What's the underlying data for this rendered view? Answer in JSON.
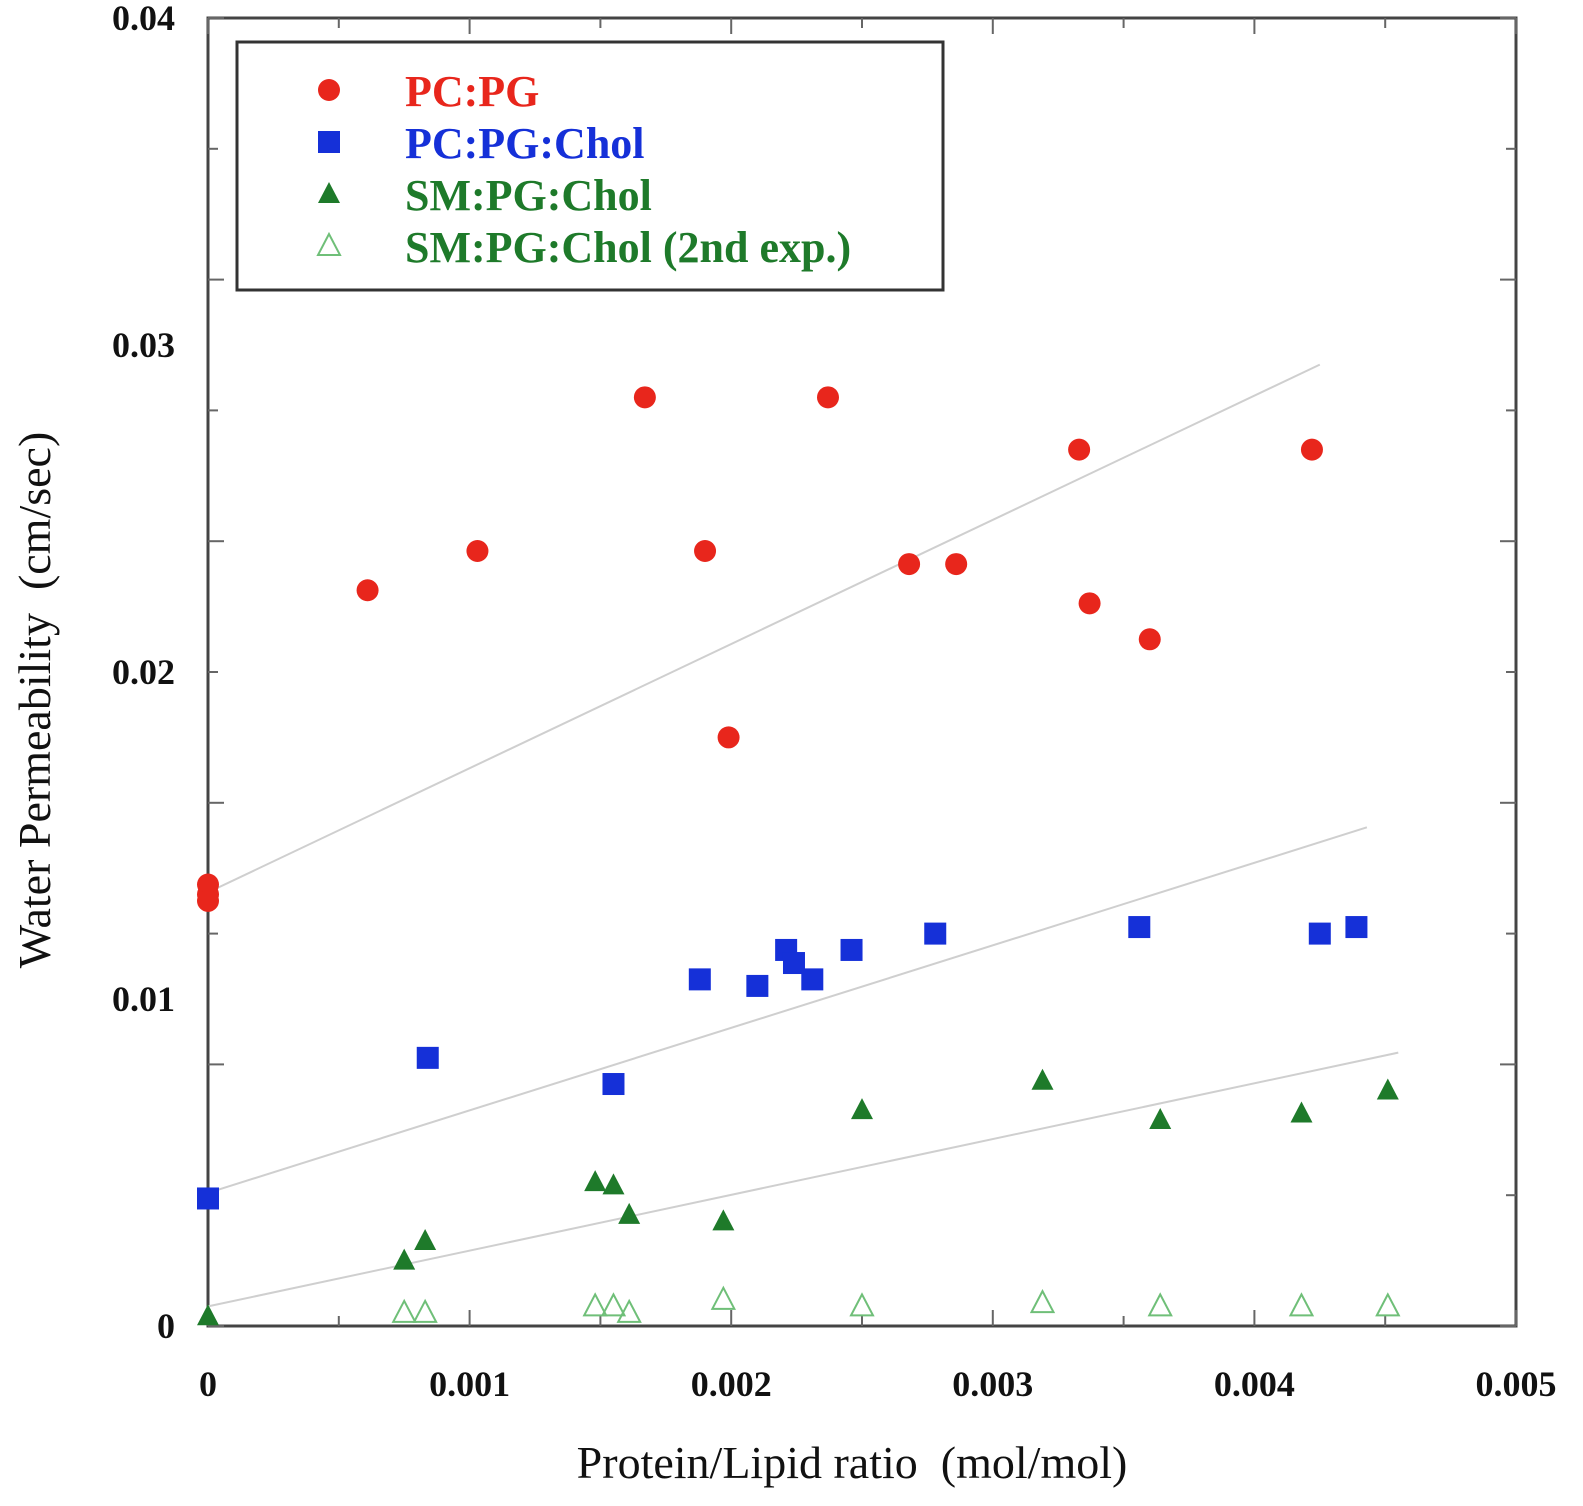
{
  "chart_data": {
    "type": "scatter",
    "title": "",
    "xlabel": "Protein/Lipid ratio  (mol/mol)",
    "ylabel": "Water Permeability  (cm/sec)",
    "xlim": [
      0,
      0.005
    ],
    "ylim": [
      0,
      0.04
    ],
    "xticks": [
      "0",
      "0.001",
      "0.002",
      "0.003",
      "0.004",
      "0.005"
    ],
    "yticks": [
      "0",
      "0.01",
      "0.02",
      "0.03",
      "0.04"
    ],
    "grid": false,
    "legend_position": "top-left",
    "series": [
      {
        "name": "PC:PG",
        "color": "#e8261c",
        "marker": "circle-filled",
        "x": [
          0,
          0,
          0,
          0.00061,
          0.00103,
          0.00167,
          0.0019,
          0.00199,
          0.00237,
          0.00268,
          0.00286,
          0.00333,
          0.00337,
          0.0036,
          0.00422
        ],
        "y": [
          0.0135,
          0.0132,
          0.013,
          0.0225,
          0.0237,
          0.0284,
          0.0237,
          0.018,
          0.0284,
          0.0233,
          0.0233,
          0.0268,
          0.0221,
          0.021,
          0.0268
        ],
        "fit": {
          "x": [
            0,
            0.00425
          ],
          "y": [
            0.01326,
            0.0294
          ]
        }
      },
      {
        "name": "PC:PG:Chol",
        "color": "#1530d8",
        "marker": "square-filled",
        "x": [
          0,
          0.00084,
          0.00155,
          0.00188,
          0.0021,
          0.00221,
          0.00224,
          0.00231,
          0.00246,
          0.00278,
          0.00356,
          0.00425,
          0.00439
        ],
        "y": [
          0.0039,
          0.0082,
          0.0074,
          0.0106,
          0.0104,
          0.0115,
          0.0111,
          0.0106,
          0.0115,
          0.012,
          0.0122,
          0.012,
          0.0122
        ],
        "fit": {
          "x": [
            0,
            0.00443
          ],
          "y": [
            0.00407,
            0.01525
          ]
        }
      },
      {
        "name": "SM:PG:Chol",
        "color": "#1e7a2a",
        "marker": "triangle-filled",
        "x": [
          0,
          0.00075,
          0.00083,
          0.00148,
          0.00155,
          0.00161,
          0.00197,
          0.0025,
          0.00319,
          0.00364,
          0.00418,
          0.00451
        ],
        "y": [
          0.0003,
          0.002,
          0.0026,
          0.0044,
          0.0043,
          0.0034,
          0.0032,
          0.0066,
          0.0075,
          0.0063,
          0.0065,
          0.0072
        ],
        "fit": {
          "x": [
            0,
            0.00455
          ],
          "y": [
            0.0006,
            0.00836
          ]
        }
      },
      {
        "name": "SM:PG:Chol (2nd exp.)",
        "color": "#1e7a2a",
        "marker": "triangle-open",
        "x": [
          0.00075,
          0.00083,
          0.00148,
          0.00155,
          0.00161,
          0.00197,
          0.0025,
          0.00319,
          0.00364,
          0.00418,
          0.00451
        ],
        "y": [
          0.0004,
          0.0004,
          0.0006,
          0.0006,
          0.0004,
          0.0008,
          0.0006,
          0.0007,
          0.0006,
          0.0006,
          0.0006
        ]
      }
    ]
  }
}
